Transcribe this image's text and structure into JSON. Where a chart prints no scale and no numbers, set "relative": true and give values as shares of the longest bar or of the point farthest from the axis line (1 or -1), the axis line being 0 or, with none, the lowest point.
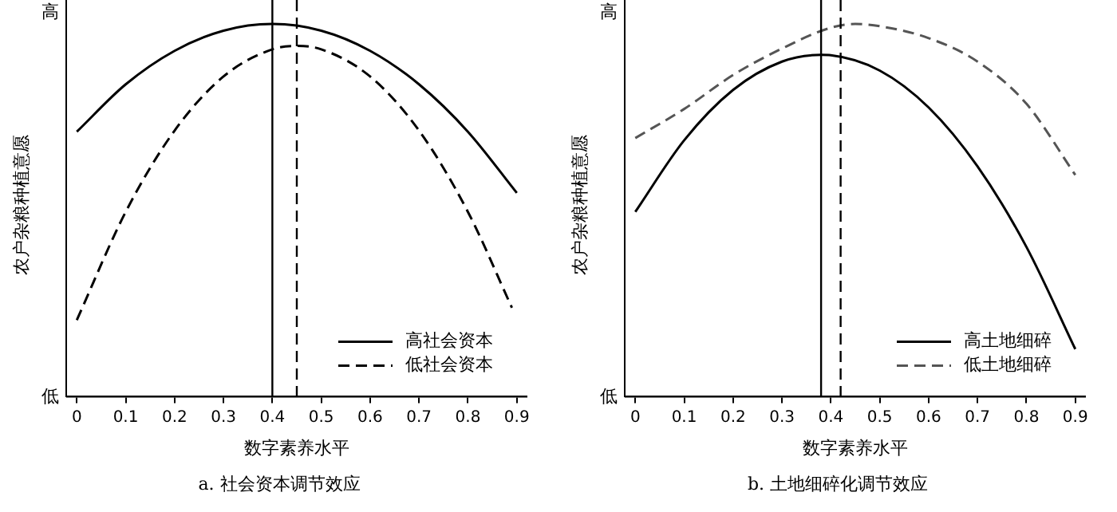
{
  "chart_data": [
    {
      "type": "line",
      "relative": true,
      "xlabel": "数字素养水平",
      "ylabel": "农户杂粮种植意愿",
      "annotations": [
        "高",
        "低",
        "a. 社会资本调节效应"
      ],
      "xlim": [
        -0.02,
        0.92
      ],
      "xticks": [
        0,
        0.1,
        0.2,
        0.3,
        0.4,
        0.5,
        0.6,
        0.7,
        0.8,
        0.9
      ],
      "legend": "bottom right",
      "series": [
        {
          "name": "高社会资本",
          "color": "#000000",
          "line_style": "solid",
          "x": [
            0,
            0.1,
            0.2,
            0.3,
            0.4,
            0.5,
            0.6,
            0.7,
            0.8,
            0.9
          ],
          "values": [
            0.711,
            0.838,
            0.928,
            0.982,
            1,
            0.982,
            0.928,
            0.838,
            0.711,
            0.547
          ]
        },
        {
          "name": "低社会资本",
          "color": "#000000",
          "line_style": "dashed",
          "x": [
            0,
            0.1,
            0.2,
            0.3,
            0.4,
            0.45,
            0.5,
            0.6,
            0.7,
            0.8,
            0.89
          ],
          "values": [
            0.206,
            0.496,
            0.714,
            0.859,
            0.932,
            0.941,
            0.932,
            0.859,
            0.714,
            0.496,
            0.239
          ]
        }
      ],
      "ref_lines": [
        {
          "axis": "x",
          "value": 0.4,
          "color": "#000000",
          "line_style": "solid"
        },
        {
          "axis": "x",
          "value": 0.45,
          "color": "#000000",
          "line_style": "dashed"
        }
      ]
    },
    {
      "type": "line",
      "relative": true,
      "xlabel": "数字素养水平",
      "ylabel": "农户杂粮种植意愿",
      "annotations": [
        "高",
        "低",
        "b. 土地细碎化调节效应"
      ],
      "xlim": [
        -0.02,
        0.92
      ],
      "xticks": [
        0,
        0.1,
        0.2,
        0.3,
        0.4,
        0.5,
        0.6,
        0.7,
        0.8,
        0.9
      ],
      "legend": "bottom right",
      "series": [
        {
          "name": "高土地细碎",
          "color": "#000000",
          "line_style": "solid",
          "x": [
            0,
            0.1,
            0.2,
            0.3,
            0.38,
            0.4,
            0.5,
            0.6,
            0.7,
            0.8,
            0.9
          ],
          "values": [
            0.496,
            0.688,
            0.823,
            0.899,
            0.917,
            0.916,
            0.875,
            0.776,
            0.618,
            0.402,
            0.128
          ]
        },
        {
          "name": "低土地细碎",
          "color": "#555555",
          "line_style": "dashed",
          "x": [
            0,
            0.1,
            0.2,
            0.3,
            0.4,
            0.45,
            0.5,
            0.6,
            0.7,
            0.8,
            0.9
          ],
          "values": [
            0.694,
            0.772,
            0.863,
            0.934,
            0.99,
            1,
            0.994,
            0.962,
            0.899,
            0.786,
            0.595
          ]
        }
      ],
      "ref_lines": [
        {
          "axis": "x",
          "value": 0.38,
          "color": "#000000",
          "line_style": "solid"
        },
        {
          "axis": "x",
          "value": 0.42,
          "color": "#000000",
          "line_style": "dashed"
        }
      ]
    }
  ]
}
